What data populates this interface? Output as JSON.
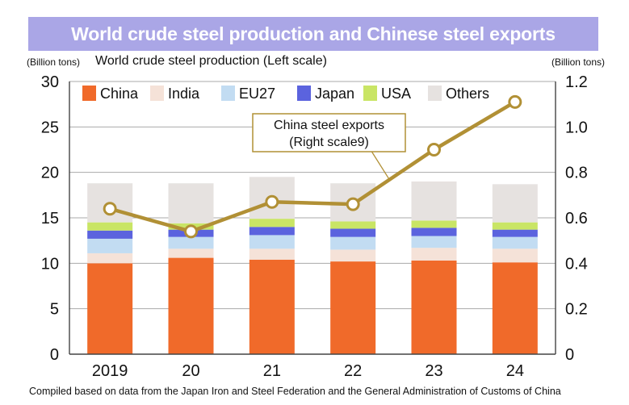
{
  "header": {
    "title": "World crude steel production and Chinese steel exports",
    "left_unit": "(Billion tons)",
    "left_subtitle": "World crude steel production (Left scale)",
    "right_unit": "(Billion tons)",
    "source": "Compiled based on data from the Japan Iron and Steel Federation and the General Administration of Customs of China"
  },
  "chart_data": {
    "type": "bar",
    "stacked": true,
    "categories": [
      "2019",
      "20",
      "21",
      "22",
      "23",
      "24"
    ],
    "series": [
      {
        "name": "China",
        "color": "#f06a2a",
        "values": [
          10.0,
          10.6,
          10.4,
          10.2,
          10.3,
          10.1
        ]
      },
      {
        "name": "India",
        "color": "#f5e2d8",
        "values": [
          1.1,
          1.0,
          1.2,
          1.3,
          1.4,
          1.5
        ]
      },
      {
        "name": "EU27",
        "color": "#c2dcf2",
        "values": [
          1.6,
          1.3,
          1.5,
          1.4,
          1.3,
          1.3
        ]
      },
      {
        "name": "Japan",
        "color": "#5b63de",
        "values": [
          0.9,
          0.8,
          0.9,
          0.9,
          0.9,
          0.8
        ]
      },
      {
        "name": "USA",
        "color": "#c9e565",
        "values": [
          0.9,
          0.7,
          0.9,
          0.8,
          0.8,
          0.8
        ]
      },
      {
        "name": "Others",
        "color": "#e6e2e0",
        "values": [
          4.3,
          4.4,
          4.6,
          4.2,
          4.3,
          4.2
        ]
      }
    ],
    "line_series": {
      "name": "China steel exports",
      "label_lines": [
        "China steel exports",
        "(Right scale9)"
      ],
      "axis": "right",
      "color": "#b19035",
      "values": [
        0.64,
        0.54,
        0.67,
        0.66,
        0.9,
        1.11
      ]
    },
    "y_left": {
      "min": 0,
      "max": 30,
      "ticks": [
        "0",
        "5",
        "10",
        "15",
        "20",
        "25",
        "30"
      ]
    },
    "y_right": {
      "min": 0,
      "max": 1.2,
      "ticks": [
        "0",
        "0.2",
        "0.4",
        "0.6",
        "0.8",
        "1.0",
        "1.2"
      ]
    },
    "grid": true,
    "legend_position": "top"
  }
}
